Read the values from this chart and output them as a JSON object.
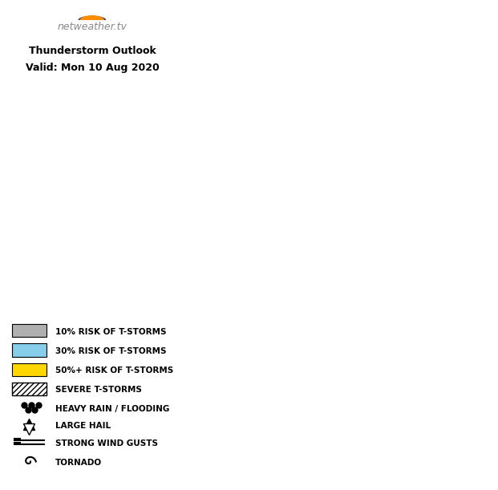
{
  "title_line1": "Thunderstorm Outlook",
  "title_line2": "Valid: Mon 10 Aug 2020",
  "label_10pct": "10%",
  "label_30pct": "30%",
  "color_10pct": "#b0b0b0",
  "color_30pct": "#87CEEB",
  "color_50pct": "#FFD700",
  "color_land": "#c8c8c8",
  "color_sea": "#ffffff",
  "color_border": "#ffffff",
  "legend_items": [
    {
      "label": "10% RISK OF T-STORMS",
      "type": "patch",
      "color": "#b0b0b0"
    },
    {
      "label": "30% RISK OF T-STORMS",
      "type": "patch",
      "color": "#87CEEB"
    },
    {
      "label": "50%+ RISK OF T-STORMS",
      "type": "patch",
      "color": "#FFD700"
    },
    {
      "label": "SEVERE T-STORMS",
      "type": "hatch"
    },
    {
      "label": "HEAVY RAIN / FLOODING",
      "type": "dots"
    },
    {
      "label": "LARGE HAIL",
      "type": "hail"
    },
    {
      "label": "STRONG WIND GUSTS",
      "type": "wind"
    },
    {
      "label": "TORNADO",
      "type": "tornado"
    }
  ],
  "figsize": [
    6.21,
    6.11
  ],
  "dpi": 100
}
